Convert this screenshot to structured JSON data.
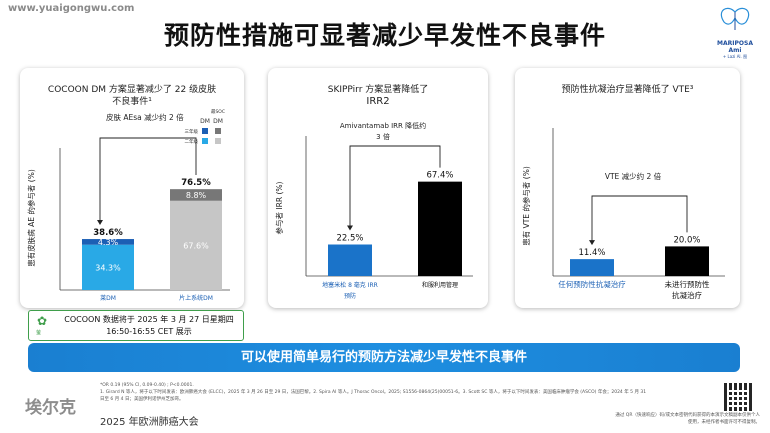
{
  "watermark": "www.yuaigongwu.com",
  "page_title": "预防性措施可显著减少早发性不良事件",
  "logo": {
    "brand": "MARIPOSA Ami",
    "sub": "+ Lazi Al. 图"
  },
  "banner": "可以使用简单易行的预防方法减少早发性不良事件",
  "note": {
    "line1": "COCOON 数据将于 2025 年 3 月 27 日星期四",
    "line2": "16:50-16:55 CET 展示",
    "label": "萤"
  },
  "footnotes": {
    "line1": "*OR 0.19 (95% CI, 0.09-0.40) ; P<0.0001.",
    "line2": "1. Girard N 等人，将于以下时间发表：欧洲肺癌大会 (ELCC)，2025 年 3 月 26 日至 29 日，法国巴黎。2. Spira AI 等人。J Thorac Oncol。2025; S1556-0864(25)00051-6。3. Scott SC 等人，将于以下时间发表：美国临床肿瘤学会 (ASCO) 年会；2024 年 5 月 31",
    "line3": "日至 6 月 4 日；美国伊利诺伊州芝加哥。"
  },
  "footer": {
    "company": "埃尔克",
    "event": "2025 年欧洲肺癌大会"
  },
  "qr_caption": {
    "line1": "通过 QR（快速响应）码/或文本密钥代码获得的本演示文稿副本仅供个人",
    "line2": "使用，未经作者书面许可不得复制。"
  },
  "chart_data": [
    {
      "type": "bar",
      "title_line1": "COCOON DM 方案显著减少了 22 级皮肤",
      "title_line2": "不良事件¹",
      "ylabel": "患有皮肤病 AE 的参与者 (%)",
      "annotation": "皮肤 AEsa 减少约 2 倍",
      "legend_title": "最SOC",
      "legend_col1": "DM",
      "legend_col2": "DM",
      "legend_rows": [
        "三年级",
        "二年级"
      ],
      "categories": [
        "莱DM",
        "片上系统DM"
      ],
      "series": [
        {
          "values": [
            34.3,
            67.6
          ],
          "colors": [
            "#29a9e6",
            "#c6c6c6"
          ]
        },
        {
          "values": [
            4.3,
            8.8
          ],
          "colors": [
            "#1c5fb4",
            "#777777"
          ]
        }
      ],
      "totals": [
        38.6,
        76.5
      ],
      "total_labels": [
        "38.6%",
        "76.5%"
      ],
      "segment_labels": [
        [
          "34.3%",
          "4.3%"
        ],
        [
          "67.6%",
          "8.8%"
        ]
      ],
      "ylim": [
        0,
        100
      ]
    },
    {
      "type": "bar",
      "title_line1": "SKIPPirr 方案显著降低了",
      "title_line2": "IRR2",
      "ylabel": "参与者 IRR (%)",
      "annotation_line1": "Amivantamab IRR 降低约",
      "annotation_line2": "3 倍",
      "categories_line1": [
        "地塞米松 8 毫克 IRR",
        "和服利用管理"
      ],
      "categories_line2": [
        "预防",
        ""
      ],
      "values": [
        22.5,
        67.4
      ],
      "value_labels": [
        "22.5%",
        "67.4%"
      ],
      "colors": [
        "#1a73c9",
        "#000000"
      ],
      "ylim": [
        0,
        100
      ]
    },
    {
      "type": "bar",
      "title": "预防性抗凝治疗显著降低了 VTE³",
      "ylabel": "患有 VTE 的参与者 (%)",
      "annotation": "VTE 减少约 2 倍",
      "categories_line1": [
        "任何预防性抗凝治疗",
        "未进行预防性"
      ],
      "categories_line2": [
        "",
        "抗凝治疗"
      ],
      "values": [
        11.4,
        20.0
      ],
      "value_labels": [
        "11.4%",
        "20.0%"
      ],
      "colors": [
        "#1a73c9",
        "#000000"
      ],
      "ylim": [
        0,
        100
      ]
    }
  ]
}
